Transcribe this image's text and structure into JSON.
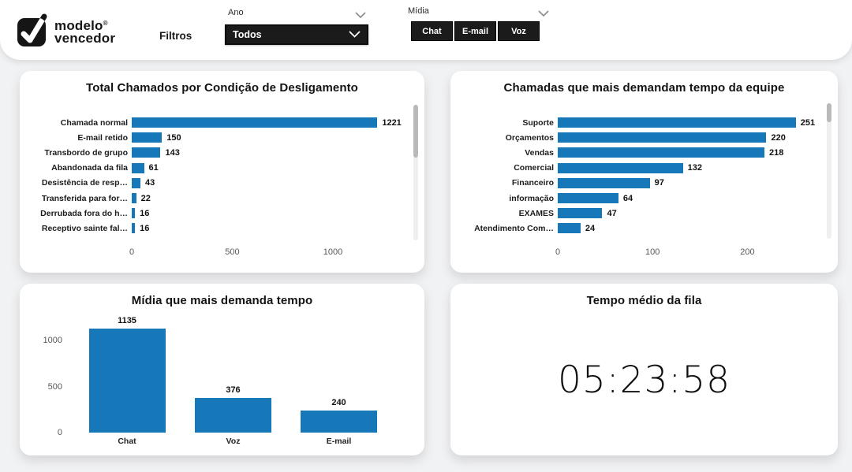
{
  "header": {
    "logo": {
      "line1": "modelo",
      "mark": "®",
      "line2": "vencedor"
    },
    "filtros_label": "Filtros",
    "ano_slicer": {
      "label": "Ano",
      "selected": "Todos"
    },
    "midia_slicer": {
      "label": "Mídia",
      "buttons": [
        "Chat",
        "E-mail",
        "Voz"
      ]
    }
  },
  "colors": {
    "bar_blue": "#1778b9",
    "dark_ui": "#1b1b1b",
    "page_bg": "#f1f2f4",
    "card_bg": "#ffffff"
  },
  "chart_data": [
    {
      "type": "bar",
      "orientation": "horizontal",
      "title": "Total Chamados por Condição de Desligamento",
      "categories": [
        "Chamada normal",
        "E-mail retido",
        "Transbordo de grupo",
        "Abandonada da fila",
        "Desistência de resp…",
        "Transferida para for…",
        "Derrubada fora do h…",
        "Receptivo sainte fal…"
      ],
      "values": [
        1221,
        150,
        143,
        61,
        43,
        22,
        16,
        16
      ],
      "xticks": [
        0,
        500,
        1000
      ],
      "xlim": [
        0,
        1353
      ],
      "grid": false,
      "scrollbar": true
    },
    {
      "type": "bar",
      "orientation": "horizontal",
      "title": "Chamadas que mais demandam tempo da equipe",
      "categories": [
        "Suporte",
        "Orçamentos",
        "Vendas",
        "Comercial",
        "Financeiro",
        "informação",
        "EXAMES",
        "Atendimento Com…"
      ],
      "values": [
        251,
        220,
        218,
        132,
        97,
        64,
        47,
        24
      ],
      "xticks": [
        0,
        100,
        200
      ],
      "xlim": [
        0,
        287
      ],
      "grid": false,
      "scrollbar": true
    },
    {
      "type": "bar",
      "orientation": "vertical",
      "title": "Mídia que mais demanda tempo",
      "categories": [
        "Chat",
        "Voz",
        "E-mail"
      ],
      "values": [
        1135,
        376,
        240
      ],
      "yticks": [
        0,
        500,
        1000
      ],
      "ylim": [
        0,
        1200
      ],
      "grid": false
    },
    {
      "type": "kpi",
      "title": "Tempo médio da fila",
      "value": "05:23:58"
    }
  ]
}
